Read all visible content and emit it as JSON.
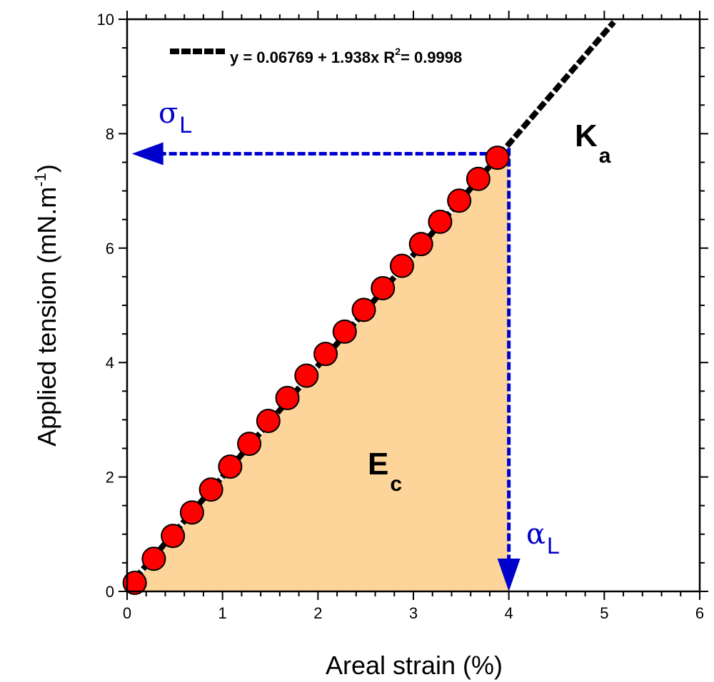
{
  "chart_data": {
    "type": "scatter",
    "xlabel": "Areal strain (%)",
    "ylabel_main": "Applied tension (mN.m",
    "ylabel_sup": "-1",
    "ylabel_close": ")",
    "xlim": [
      0,
      6
    ],
    "ylim": [
      0,
      10
    ],
    "xticks": [
      0,
      1,
      2,
      3,
      4,
      5,
      6
    ],
    "yticks": [
      0,
      2,
      4,
      6,
      8,
      10
    ],
    "x_minor_step": 0.2,
    "y_minor_step": 0.5,
    "points": {
      "x": [
        0.08,
        0.28,
        0.48,
        0.68,
        0.88,
        1.08,
        1.28,
        1.48,
        1.68,
        1.88,
        2.08,
        2.28,
        2.48,
        2.68,
        2.88,
        3.08,
        3.28,
        3.48,
        3.68,
        3.88
      ],
      "y": [
        0.15,
        0.57,
        0.97,
        1.38,
        1.78,
        2.18,
        2.58,
        2.98,
        3.38,
        3.77,
        4.15,
        4.54,
        4.92,
        5.3,
        5.69,
        6.07,
        6.46,
        6.83,
        7.21,
        7.58
      ]
    },
    "fit": {
      "intercept": 0.06769,
      "slope": 1.938,
      "x_range": [
        0.0,
        5.1
      ],
      "legend_prefix": "y = 0.06769 + 1.938x   R",
      "legend_sup": "2",
      "legend_suffix": "= 0.9998"
    },
    "area": {
      "x_end": 4.0,
      "y_end": 7.75
    },
    "sigma_arrow": {
      "from_x": 4.0,
      "to_x": 0.05,
      "y": 7.65
    },
    "alpha_arrow": {
      "x": 4.0,
      "from_y": 7.75,
      "to_y": 0.0
    },
    "annotations": {
      "Ec_main": "E",
      "Ec_sub": "c",
      "Ka_main": "K",
      "Ka_sub": "a",
      "sigma_main": "σ",
      "sigma_sub": "L",
      "alpha_main": "α",
      "alpha_sub": "L"
    },
    "colors": {
      "marker": "#ff0000",
      "marker_edge": "#000000",
      "fit_line": "#000000",
      "area_fill": "#fdd49a",
      "arrow": "#0000cc"
    }
  }
}
